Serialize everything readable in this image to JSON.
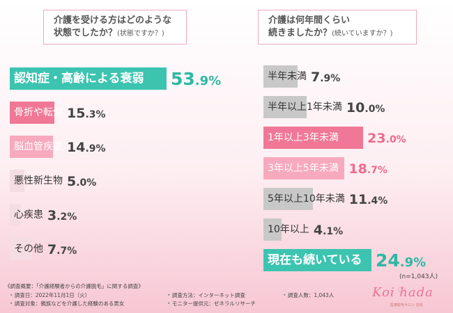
{
  "questions": {
    "left": {
      "line1": "介護を受ける方はどのような",
      "line2": "状態でしたか？",
      "sub": "(状態ですか？)"
    },
    "right": {
      "line1": "介護は何年間くらい",
      "line2": "続きましたか？",
      "sub": "(続いていますか？)"
    }
  },
  "sample_note": "(n=1,043人)",
  "chart_data": [
    {
      "type": "bar",
      "orientation": "horizontal",
      "title": "介護を受ける方はどのような状態でしたか？(状態ですか？)",
      "categories": [
        "認知症・高齢による衰弱",
        "骨折や転倒",
        "脳血管疾患",
        "悪性新生物",
        "心疾患",
        "その他"
      ],
      "values": [
        53.9,
        15.3,
        14.9,
        5.0,
        3.2,
        7.7
      ],
      "value_labels": [
        {
          "int": "53",
          "dec": ".9%"
        },
        {
          "int": "15",
          "dec": ".3%"
        },
        {
          "int": "14",
          "dec": ".9%"
        },
        {
          "int": "5",
          "dec": ".0%"
        },
        {
          "int": "3",
          "dec": ".2%"
        },
        {
          "int": "7",
          "dec": ".7%"
        }
      ],
      "unit": "%",
      "bar_colors": [
        "#3cc4b0",
        "#f07896",
        "#f7a9bd",
        "#f4dde3",
        "#f4dde3",
        "#f4dde3"
      ],
      "highlight_value_colors": [
        "green",
        "",
        "",
        "",
        "",
        ""
      ]
    },
    {
      "type": "bar",
      "orientation": "horizontal",
      "title": "介護は何年間くらい続きましたか？(続いていますか？)",
      "categories": [
        "半年未満",
        "半年以上1年未満",
        "1年以上3年未満",
        "3年以上5年未満",
        "5年以上10年未満",
        "10年以上",
        "現在も続いている"
      ],
      "values": [
        7.9,
        10.0,
        23.0,
        18.7,
        11.4,
        4.1,
        24.9
      ],
      "value_labels": [
        {
          "int": "7",
          "dec": ".9%"
        },
        {
          "int": "10",
          "dec": ".0%"
        },
        {
          "int": "23",
          "dec": ".0%"
        },
        {
          "int": "18",
          "dec": ".7%"
        },
        {
          "int": "11",
          "dec": ".4%"
        },
        {
          "int": "4",
          "dec": ".1%"
        },
        {
          "int": "24",
          "dec": ".9%"
        }
      ],
      "unit": "%",
      "bar_colors": [
        "#c8c8c8",
        "#c8c8c8",
        "#f07896",
        "#f7a9bd",
        "#c8c8c8",
        "#c8c8c8",
        "#3cc4b0"
      ],
      "highlight_value_colors": [
        "",
        "",
        "pink",
        "pink",
        "",
        "",
        "green"
      ]
    }
  ],
  "footer": {
    "title": "《調査概要：「介護経験者からの介護脱毛」に関する調査》",
    "date": "調査日：2022年11月1日（火）",
    "method": "調査方法：インターネット調査",
    "count": "調査人数：1,043人",
    "target": "調査対象：親族などを介護した経験のある男女",
    "provider": "モニター提供元：ゼネラルリサーチ",
    "bullet": "•"
  },
  "logo": {
    "main": "Koi hada",
    "heart": "♡",
    "sub": "医療脱毛サロン 恋肌"
  }
}
